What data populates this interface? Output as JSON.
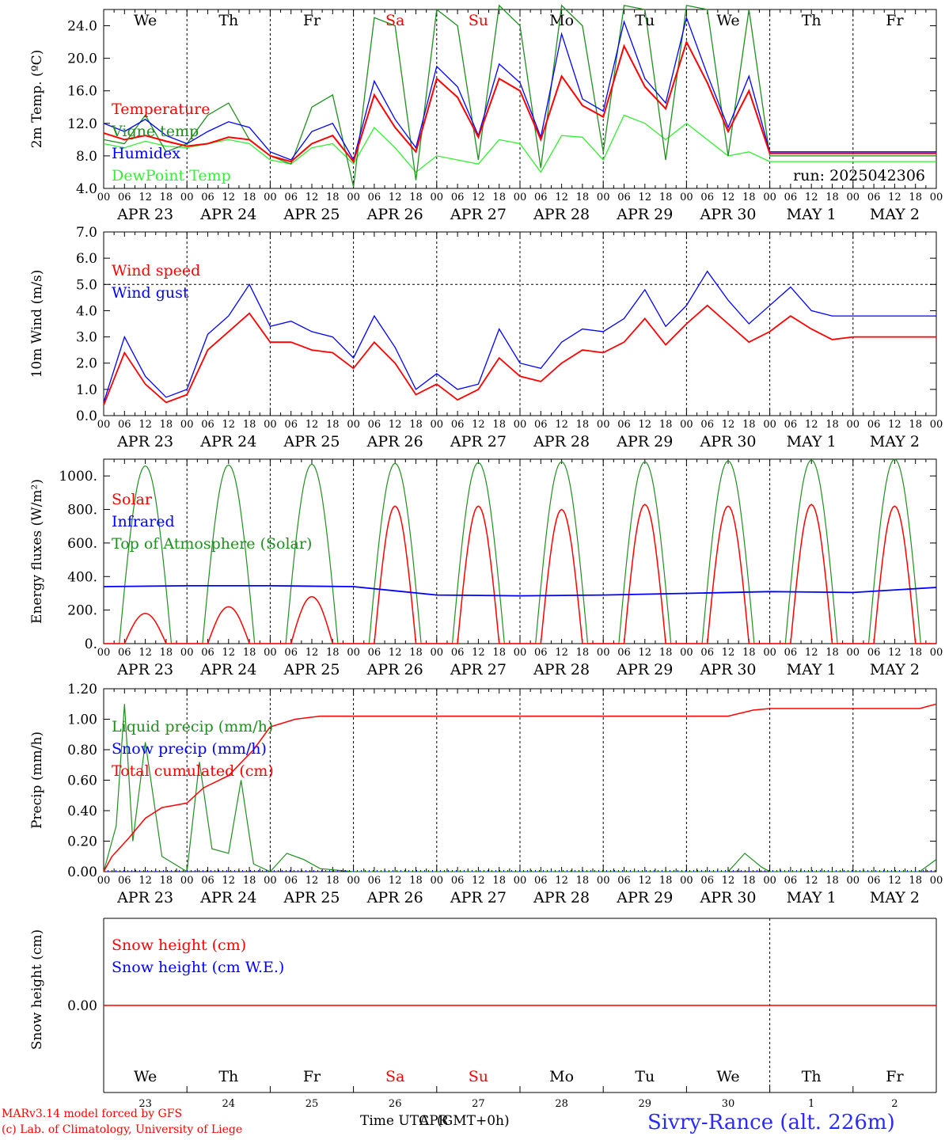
{
  "colors": {
    "red": "#ff0000",
    "green": "#1f8f1f",
    "blue": "#0000ff",
    "lightgreen": "#33ee33",
    "axis": "#000000"
  },
  "days_top": [
    {
      "label": "We",
      "color": "#000000"
    },
    {
      "label": "Th",
      "color": "#000000"
    },
    {
      "label": "Fr",
      "color": "#000000"
    },
    {
      "label": "Sa",
      "color": "#ff0000"
    },
    {
      "label": "Su",
      "color": "#ff0000"
    },
    {
      "label": "Mo",
      "color": "#000000"
    },
    {
      "label": "Tu",
      "color": "#000000"
    },
    {
      "label": "We",
      "color": "#000000"
    },
    {
      "label": "Th",
      "color": "#000000"
    },
    {
      "label": "Fr",
      "color": "#000000"
    }
  ],
  "date_labels": [
    "APR 23",
    "APR 24",
    "APR 25",
    "APR 26",
    "APR 27",
    "APR 28",
    "APR 29",
    "APR 30",
    "MAY  1",
    "MAY  2"
  ],
  "hour_ticks": [
    "00",
    "06",
    "12",
    "18"
  ],
  "hour_last": "00",
  "day_numbers": [
    "23",
    "24",
    "25",
    "26",
    "27",
    "28",
    "29",
    "30",
    "1",
    "2"
  ],
  "footer": {
    "credit_line1": "MARv3.14 model forced by GFS",
    "credit_line2": "(c) Lab. of Climatology, University of Liege",
    "time_label": "Time UTC",
    "time_month": "APR",
    "time_tz": "(GMT+0h)",
    "station": "Sivry-Rance (alt. 226m)"
  },
  "chart_data": [
    {
      "type": "line",
      "ylabel": "2m Temp. (ºC)",
      "ylim": [
        4,
        26
      ],
      "yticks": [
        "4.0",
        "8.0",
        "12.0",
        "16.0",
        "20.0",
        "24.0"
      ],
      "annotation": "run: 2025042306",
      "x_days": [
        0,
        10
      ],
      "series": [
        {
          "name": "Temperature",
          "color": "#ff0000",
          "x": [
            0,
            0.25,
            0.5,
            0.75,
            1,
            1.25,
            1.5,
            1.75,
            2,
            2.25,
            2.5,
            2.75,
            3,
            3.25,
            3.5,
            3.75,
            4,
            4.25,
            4.5,
            4.75,
            5,
            5.25,
            5.5,
            5.75,
            6,
            6.25,
            6.5,
            6.75,
            7,
            7.25,
            7.5,
            7.75,
            8,
            8.25,
            8.5,
            8.75,
            9,
            9.25,
            9.5,
            9.75,
            10
          ],
          "values": [
            10.8,
            10.0,
            10.5,
            9.8,
            9.2,
            9.5,
            10.3,
            10.0,
            8.0,
            7.3,
            9.5,
            10.5,
            7.3,
            15.5,
            11.5,
            8.5,
            17.5,
            15.2,
            10.3,
            17.5,
            16.0,
            10.0,
            17.8,
            14.2,
            12.8,
            21.5,
            16.5,
            13.8,
            22.0,
            17.0,
            11.0,
            16.0,
            8.3,
            8.3,
            8.3,
            8.3,
            8.3,
            8.3,
            8.3,
            8.3,
            8.3
          ]
        },
        {
          "name": "Vigne temp",
          "color": "#1f8f1f",
          "x": [
            0,
            0.25,
            0.5,
            0.75,
            1,
            1.25,
            1.5,
            1.75,
            2,
            2.25,
            2.5,
            2.75,
            3,
            3.25,
            3.5,
            3.75,
            4,
            4.25,
            4.5,
            4.75,
            5,
            5.25,
            5.5,
            5.75,
            6,
            6.25,
            6.5,
            6.75,
            7,
            7.25,
            7.5,
            7.75,
            8,
            8.25,
            8.5,
            8.75,
            9,
            9.25,
            9.5,
            9.75,
            10
          ],
          "values": [
            10.0,
            9.5,
            13.0,
            8.5,
            9.5,
            13.0,
            14.5,
            10.0,
            8.0,
            7.0,
            14.0,
            15.5,
            4.2,
            25.0,
            24.0,
            5.0,
            26.0,
            24.0,
            7.5,
            26.5,
            24.0,
            6.5,
            26.5,
            24.0,
            8.5,
            26.5,
            26.0,
            7.5,
            26.5,
            26.0,
            8.0,
            26.0,
            8.0,
            8.0,
            8.0,
            8.0,
            8.0,
            8.0,
            8.0,
            8.0,
            8.0
          ]
        },
        {
          "name": "Humidex",
          "color": "#0000ff",
          "x": [
            0,
            0.25,
            0.5,
            0.75,
            1,
            1.25,
            1.5,
            1.75,
            2,
            2.25,
            2.5,
            2.75,
            3,
            3.25,
            3.5,
            3.75,
            4,
            4.25,
            4.5,
            4.75,
            5,
            5.25,
            5.5,
            5.75,
            6,
            6.25,
            6.5,
            6.75,
            7,
            7.25,
            7.5,
            7.75,
            8,
            8.25,
            8.5,
            8.75,
            9,
            9.25,
            9.5,
            9.75,
            10
          ],
          "values": [
            12.0,
            11.0,
            12.5,
            10.5,
            9.5,
            11.0,
            12.2,
            11.5,
            8.5,
            7.5,
            11.0,
            12.0,
            7.5,
            17.2,
            12.5,
            9.0,
            19.0,
            16.5,
            10.5,
            19.3,
            17.0,
            10.3,
            23.0,
            15.0,
            13.5,
            24.5,
            17.5,
            14.5,
            25.0,
            18.0,
            11.5,
            17.8,
            8.5,
            8.5,
            8.5,
            8.5,
            8.5,
            8.5,
            8.5,
            8.5,
            8.5
          ]
        },
        {
          "name": "DewPoint Temp",
          "color": "#33ee33",
          "x": [
            0,
            0.25,
            0.5,
            0.75,
            1,
            1.25,
            1.5,
            1.75,
            2,
            2.25,
            2.5,
            2.75,
            3,
            3.25,
            3.5,
            3.75,
            4,
            4.25,
            4.5,
            4.75,
            5,
            5.25,
            5.5,
            5.75,
            6,
            6.25,
            6.5,
            6.75,
            7,
            7.25,
            7.5,
            7.75,
            8,
            8.25,
            8.5,
            8.75,
            9,
            9.25,
            9.5,
            9.75,
            10
          ],
          "values": [
            9.5,
            9.0,
            9.8,
            9.2,
            9.0,
            9.5,
            10.0,
            9.5,
            7.5,
            7.0,
            9.0,
            9.5,
            7.0,
            11.5,
            9.0,
            6.0,
            8.0,
            7.5,
            7.0,
            10.0,
            9.5,
            6.0,
            10.5,
            10.3,
            7.5,
            13.0,
            12.0,
            10.0,
            12.0,
            10.0,
            8.0,
            8.5,
            7.3,
            7.3,
            7.3,
            7.3,
            7.3,
            7.3,
            7.3,
            7.3,
            7.3
          ]
        }
      ]
    },
    {
      "type": "line",
      "ylabel": "10m Wind (m/s)",
      "ylim": [
        0,
        7
      ],
      "yticks": [
        "0.0",
        "1.0",
        "2.0",
        "3.0",
        "4.0",
        "5.0",
        "6.0",
        "7.0"
      ],
      "ref_line": 5.0,
      "x_days": [
        0,
        10
      ],
      "series": [
        {
          "name": "Wind speed",
          "color": "#ff0000",
          "x": [
            0,
            0.25,
            0.5,
            0.75,
            1,
            1.25,
            1.5,
            1.75,
            2,
            2.25,
            2.5,
            2.75,
            3,
            3.25,
            3.5,
            3.75,
            4,
            4.25,
            4.5,
            4.75,
            5,
            5.25,
            5.5,
            5.75,
            6,
            6.25,
            6.5,
            6.75,
            7,
            7.25,
            7.5,
            7.75,
            8,
            8.25,
            8.5,
            8.75,
            9,
            9.25,
            9.5,
            9.75,
            10
          ],
          "values": [
            0.4,
            2.4,
            1.2,
            0.5,
            0.8,
            2.5,
            3.2,
            3.9,
            2.8,
            2.8,
            2.5,
            2.4,
            1.8,
            2.8,
            2.0,
            0.8,
            1.2,
            0.6,
            1.0,
            2.2,
            1.5,
            1.3,
            2.0,
            2.5,
            2.4,
            2.8,
            3.7,
            2.7,
            3.5,
            4.2,
            3.5,
            2.8,
            3.2,
            3.8,
            3.3,
            2.9,
            3.0,
            3.0,
            3.0,
            3.0,
            3.0
          ]
        },
        {
          "name": "Wind gust",
          "color": "#0000ff",
          "x": [
            0,
            0.25,
            0.5,
            0.75,
            1,
            1.25,
            1.5,
            1.75,
            2,
            2.25,
            2.5,
            2.75,
            3,
            3.25,
            3.5,
            3.75,
            4,
            4.25,
            4.5,
            4.75,
            5,
            5.25,
            5.5,
            5.75,
            6,
            6.25,
            6.5,
            6.75,
            7,
            7.25,
            7.5,
            7.75,
            8,
            8.25,
            8.5,
            8.75,
            9,
            9.25,
            9.5,
            9.75,
            10
          ],
          "values": [
            0.5,
            3.0,
            1.5,
            0.7,
            1.0,
            3.1,
            3.8,
            5.0,
            3.4,
            3.6,
            3.2,
            3.0,
            2.2,
            3.8,
            2.6,
            1.0,
            1.6,
            1.0,
            1.2,
            3.3,
            2.0,
            1.8,
            2.8,
            3.3,
            3.2,
            3.7,
            4.8,
            3.4,
            4.2,
            5.5,
            4.4,
            3.5,
            4.2,
            4.9,
            4.0,
            3.8,
            3.8,
            3.8,
            3.8,
            3.8,
            3.8
          ]
        }
      ]
    },
    {
      "type": "line",
      "ylabel": "Energy fluxes (W/m²)",
      "ylim": [
        0,
        1100
      ],
      "yticks": [
        "0.",
        "200.",
        "400.",
        "600.",
        "800.",
        "1000."
      ],
      "x_days": [
        0,
        10
      ],
      "series": [
        {
          "name": "Solar",
          "color": "#ff0000",
          "day_peaks": [
            180,
            220,
            280,
            820,
            820,
            800,
            830,
            820,
            830,
            820
          ]
        },
        {
          "name": "Infrared",
          "color": "#0000ff",
          "x": [
            0,
            1,
            2,
            3,
            4,
            5,
            6,
            7,
            8,
            9,
            10
          ],
          "values": [
            340,
            345,
            345,
            340,
            290,
            285,
            290,
            300,
            310,
            305,
            335
          ]
        },
        {
          "name": "Top of Atmosphere (Solar)",
          "color": "#1f8f1f",
          "day_peaks": [
            1060,
            1065,
            1070,
            1075,
            1080,
            1085,
            1085,
            1090,
            1095,
            1100
          ]
        }
      ]
    },
    {
      "type": "line",
      "ylabel": "Precip (mm/h)",
      "ylim": [
        0,
        1.2
      ],
      "yticks": [
        "0.00",
        "0.20",
        "0.40",
        "0.60",
        "0.80",
        "1.00",
        "1.20"
      ],
      "x_days": [
        0,
        10
      ],
      "series": [
        {
          "name": "Liquid precip (mm/h)",
          "color": "#1f8f1f",
          "x": [
            0,
            0.15,
            0.25,
            0.35,
            0.5,
            0.7,
            1,
            1.15,
            1.3,
            1.5,
            1.65,
            1.8,
            2,
            2.2,
            2.4,
            2.6,
            3,
            7.5,
            7.7,
            7.9,
            8,
            9.8,
            10
          ],
          "values": [
            0,
            0.3,
            1.1,
            0.2,
            0.85,
            0.1,
            0,
            0.72,
            0.15,
            0.12,
            0.6,
            0.05,
            0,
            0.12,
            0.08,
            0.02,
            0,
            0,
            0.12,
            0.03,
            0,
            0,
            0.08
          ]
        },
        {
          "name": "Snow precip (mm/h)",
          "color": "#0000ff",
          "x": [
            0,
            10
          ],
          "values": [
            0,
            0
          ]
        },
        {
          "name": "Total cumulated (cm)",
          "color": "#ff0000",
          "x": [
            0,
            0.1,
            0.3,
            0.5,
            0.7,
            1,
            1.2,
            1.5,
            1.8,
            2,
            2.3,
            2.6,
            3,
            7.5,
            7.8,
            8,
            9.8,
            10
          ],
          "values": [
            0,
            0.1,
            0.22,
            0.35,
            0.42,
            0.45,
            0.55,
            0.63,
            0.8,
            0.95,
            1.0,
            1.02,
            1.02,
            1.02,
            1.06,
            1.07,
            1.07,
            1.1
          ]
        }
      ]
    },
    {
      "type": "line",
      "ylabel": "Snow height (cm)",
      "yticks": [
        "0.00"
      ],
      "x_days": [
        0,
        10
      ],
      "series": [
        {
          "name": "Snow height (cm)",
          "color": "#ff0000",
          "x": [
            0,
            10
          ],
          "values": [
            0,
            0
          ]
        },
        {
          "name": "Snow height (cm W.E.)",
          "color": "#0000ff",
          "x": [
            0,
            10
          ],
          "values": [
            0,
            0
          ]
        }
      ]
    }
  ]
}
